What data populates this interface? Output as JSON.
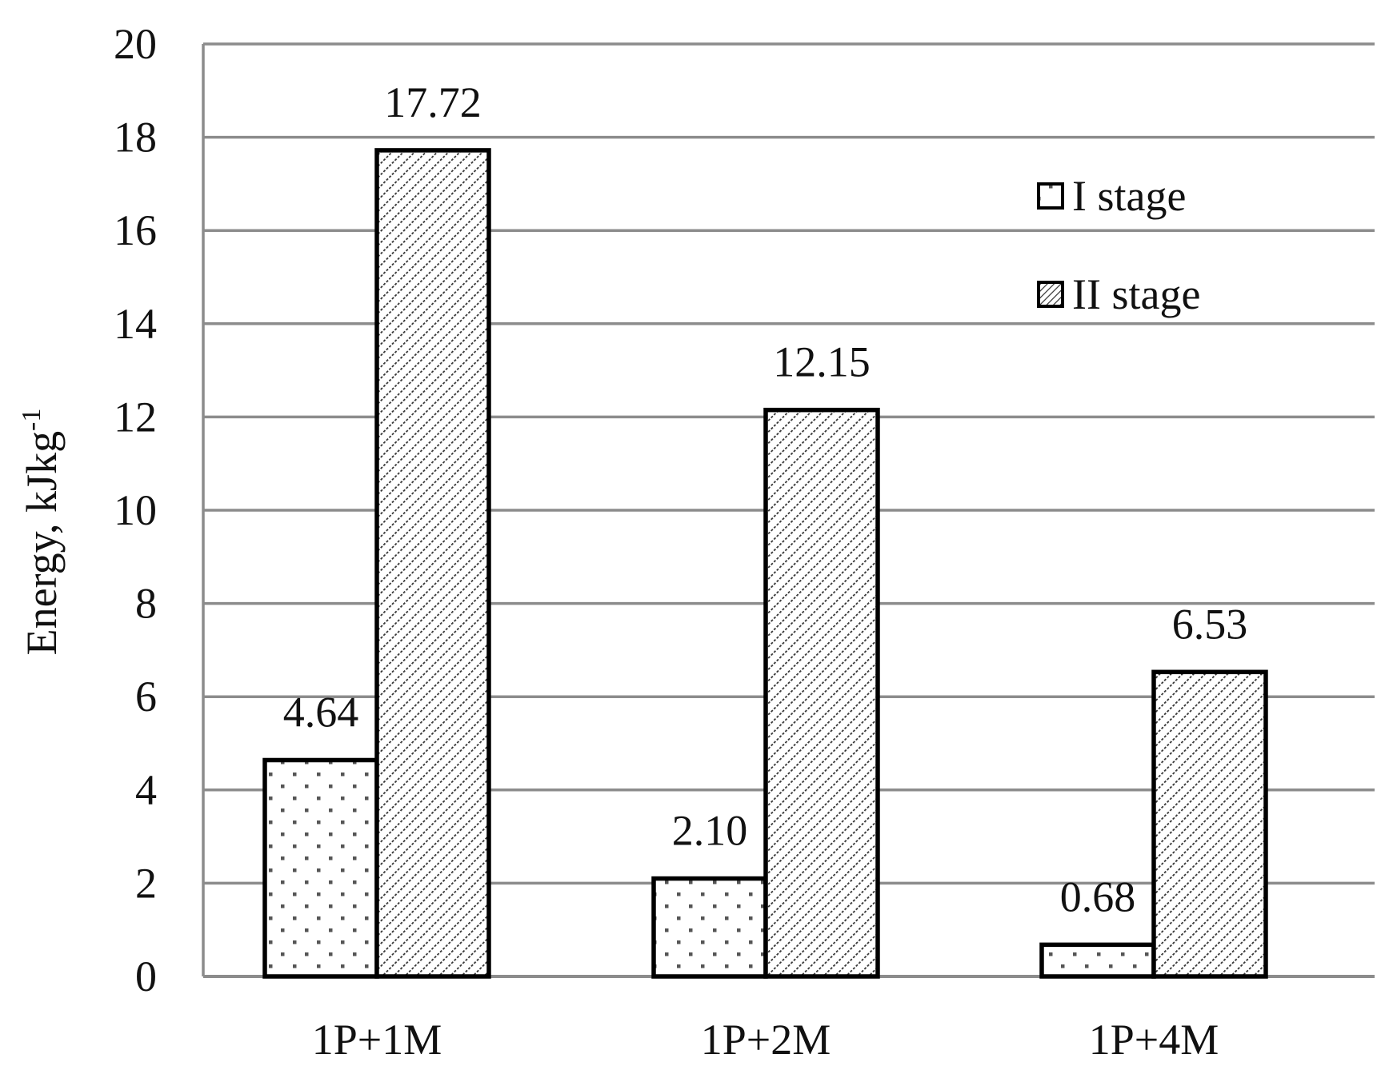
{
  "chart_data": {
    "type": "bar",
    "title": "",
    "xlabel": "",
    "ylabel": "Energy, kJkg",
    "ylabel_sup": "-1",
    "categories": [
      "1P+1M",
      "1P+2M",
      "1P+4M"
    ],
    "series": [
      {
        "name": "I stage",
        "values": [
          4.64,
          2.1,
          0.68
        ],
        "value_labels": [
          "4.64",
          "2.10",
          "0.68"
        ],
        "pattern": "dots"
      },
      {
        "name": "II stage",
        "values": [
          17.72,
          12.15,
          6.53
        ],
        "value_labels": [
          "17.72",
          "12.15",
          "6.53"
        ],
        "pattern": "diagonal-hatch"
      }
    ],
    "ylim": [
      0,
      20
    ],
    "yticks": [
      0,
      2,
      4,
      6,
      8,
      10,
      12,
      14,
      16,
      18,
      20
    ],
    "grid": true,
    "legend_position": "top-right",
    "colors": {
      "bar_outline": "#000000",
      "bar_fill": "#ffffff",
      "pattern": "#444444",
      "grid": "#8c8c8c",
      "text": "#111111"
    }
  }
}
